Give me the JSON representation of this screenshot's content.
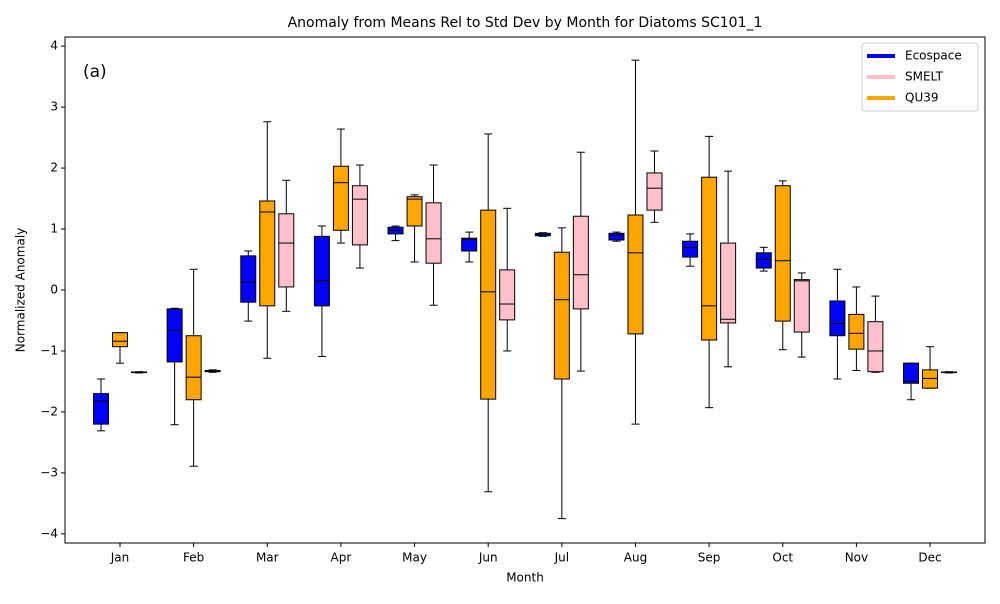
{
  "chart_data": {
    "type": "box",
    "title": "Anomaly from Means Rel to Std Dev by Month for Diatoms SC101_1",
    "annotation": "(a)",
    "x_label": "Month",
    "y_label": "Normalized Anomaly",
    "categories": [
      "Jan",
      "Feb",
      "Mar",
      "Apr",
      "May",
      "Jun",
      "Jul",
      "Aug",
      "Sep",
      "Oct",
      "Nov",
      "Dec"
    ],
    "ylim": [
      -4.15,
      4.15
    ],
    "yticks": [
      {
        "value": -4,
        "label": "−4"
      },
      {
        "value": -3,
        "label": "−3"
      },
      {
        "value": -2,
        "label": "−2"
      },
      {
        "value": -1,
        "label": "−1"
      },
      0,
      1,
      2,
      3,
      4
    ],
    "legend": "upper right",
    "series": [
      {
        "name": "Ecospace",
        "color": "#0000ff",
        "values": [
          {
            "min": -2.31,
            "q1": -2.2,
            "median": -1.82,
            "q3": -1.7,
            "max": -1.46
          },
          {
            "min": -2.21,
            "q1": -1.18,
            "median": -0.66,
            "q3": -0.31,
            "max": -0.3
          },
          {
            "min": -0.51,
            "q1": -0.2,
            "median": 0.13,
            "q3": 0.56,
            "max": 0.64
          },
          {
            "min": -1.09,
            "q1": -0.26,
            "median": 0.15,
            "q3": 0.88,
            "max": 1.05
          },
          {
            "min": 0.81,
            "q1": 0.92,
            "median": 0.98,
            "q3": 1.03,
            "max": 1.05
          },
          {
            "min": 0.46,
            "q1": 0.64,
            "median": 0.83,
            "q3": 0.85,
            "max": 0.95
          },
          {
            "min": 0.88,
            "q1": 0.89,
            "median": 0.91,
            "q3": 0.93,
            "max": 0.94
          },
          {
            "min": 0.8,
            "q1": 0.82,
            "median": 0.9,
            "q3": 0.93,
            "max": 0.95
          },
          {
            "min": 0.39,
            "q1": 0.54,
            "median": 0.7,
            "q3": 0.8,
            "max": 0.92
          },
          {
            "min": 0.31,
            "q1": 0.36,
            "median": 0.5,
            "q3": 0.61,
            "max": 0.7
          },
          {
            "min": -1.46,
            "q1": -0.75,
            "median": -0.55,
            "q3": -0.18,
            "max": 0.34
          },
          {
            "min": -1.8,
            "q1": -1.53,
            "median": -1.5,
            "q3": -1.2,
            "max": -1.2
          }
        ]
      },
      {
        "name": "SMELT",
        "color": "#ffc0cb",
        "values": [
          {
            "min": -1.36,
            "q1": -1.355,
            "median": -1.35,
            "q3": -1.345,
            "max": -1.34
          },
          {
            "min": -1.35,
            "q1": -1.34,
            "median": -1.33,
            "q3": -1.32,
            "max": -1.31
          },
          {
            "min": -0.35,
            "q1": 0.05,
            "median": 0.77,
            "q3": 1.25,
            "max": 1.8
          },
          {
            "min": 0.36,
            "q1": 0.74,
            "median": 1.49,
            "q3": 1.71,
            "max": 2.05
          },
          {
            "min": -0.25,
            "q1": 0.44,
            "median": 0.84,
            "q3": 1.43,
            "max": 2.05
          },
          {
            "min": -1.0,
            "q1": -0.49,
            "median": -0.23,
            "q3": 0.33,
            "max": 1.34
          },
          {
            "min": -1.33,
            "q1": -0.31,
            "median": 0.25,
            "q3": 1.21,
            "max": 2.26
          },
          {
            "min": 1.11,
            "q1": 1.31,
            "median": 1.67,
            "q3": 1.92,
            "max": 2.28
          },
          {
            "min": -1.26,
            "q1": -0.54,
            "median": -0.48,
            "q3": 0.77,
            "max": 1.95
          },
          {
            "min": -1.1,
            "q1": -0.69,
            "median": 0.15,
            "q3": 0.17,
            "max": 0.28
          },
          {
            "min": -1.35,
            "q1": -1.34,
            "median": -1.0,
            "q3": -0.52,
            "max": -0.1
          },
          {
            "min": -1.36,
            "q1": -1.355,
            "median": -1.35,
            "q3": -1.345,
            "max": -1.34
          }
        ]
      },
      {
        "name": "QU39",
        "color": "#ffa500",
        "values": [
          {
            "min": -1.2,
            "q1": -0.93,
            "median": -0.84,
            "q3": -0.7,
            "max": -0.7
          },
          {
            "min": -2.89,
            "q1": -1.8,
            "median": -1.43,
            "q3": -0.75,
            "max": 0.34
          },
          {
            "min": -1.12,
            "q1": -0.26,
            "median": 1.28,
            "q3": 1.46,
            "max": 2.76
          },
          {
            "min": 0.77,
            "q1": 0.98,
            "median": 1.76,
            "q3": 2.03,
            "max": 2.64
          },
          {
            "min": 0.46,
            "q1": 1.05,
            "median": 1.49,
            "q3": 1.53,
            "max": 1.56
          },
          {
            "min": -3.31,
            "q1": -1.79,
            "median": -0.03,
            "q3": 1.31,
            "max": 2.56
          },
          {
            "min": -3.75,
            "q1": -1.46,
            "median": -0.16,
            "q3": 0.62,
            "max": 1.02
          },
          {
            "min": -2.2,
            "q1": -0.72,
            "median": 0.61,
            "q3": 1.23,
            "max": 3.77
          },
          {
            "min": -1.93,
            "q1": -0.82,
            "median": -0.26,
            "q3": 1.85,
            "max": 2.52
          },
          {
            "min": -0.98,
            "q1": -0.51,
            "median": 0.48,
            "q3": 1.71,
            "max": 1.79
          },
          {
            "min": -1.32,
            "q1": -0.97,
            "median": -0.71,
            "q3": -0.4,
            "max": 0.05
          },
          {
            "min": -1.61,
            "q1": -1.61,
            "median": -1.45,
            "q3": -1.31,
            "max": -0.93
          }
        ]
      }
    ]
  }
}
